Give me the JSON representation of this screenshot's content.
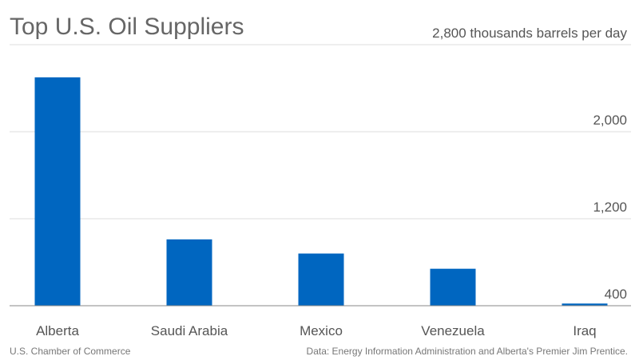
{
  "chart_data": {
    "type": "bar",
    "title": "Top U.S. Oil Suppliers",
    "categories": [
      "Alberta",
      "Saudi Arabia",
      "Mexico",
      "Venezuela",
      "Iraq"
    ],
    "values": [
      2500,
      1010,
      880,
      740,
      420
    ],
    "color": "#0066c0",
    "ylim": [
      400,
      2800
    ],
    "yticks": [
      400,
      {
        "value": 1200,
        "label": "1,200"
      },
      {
        "value": 2000,
        "label": "2,000"
      },
      {
        "value": 2800,
        "label": "2,800 thousands barrels per day"
      }
    ],
    "grid": true,
    "source_left": "U.S. Chamber of Commerce",
    "source_right": "Data: Energy Information Administration and Alberta's Premier Jim Prentice."
  }
}
